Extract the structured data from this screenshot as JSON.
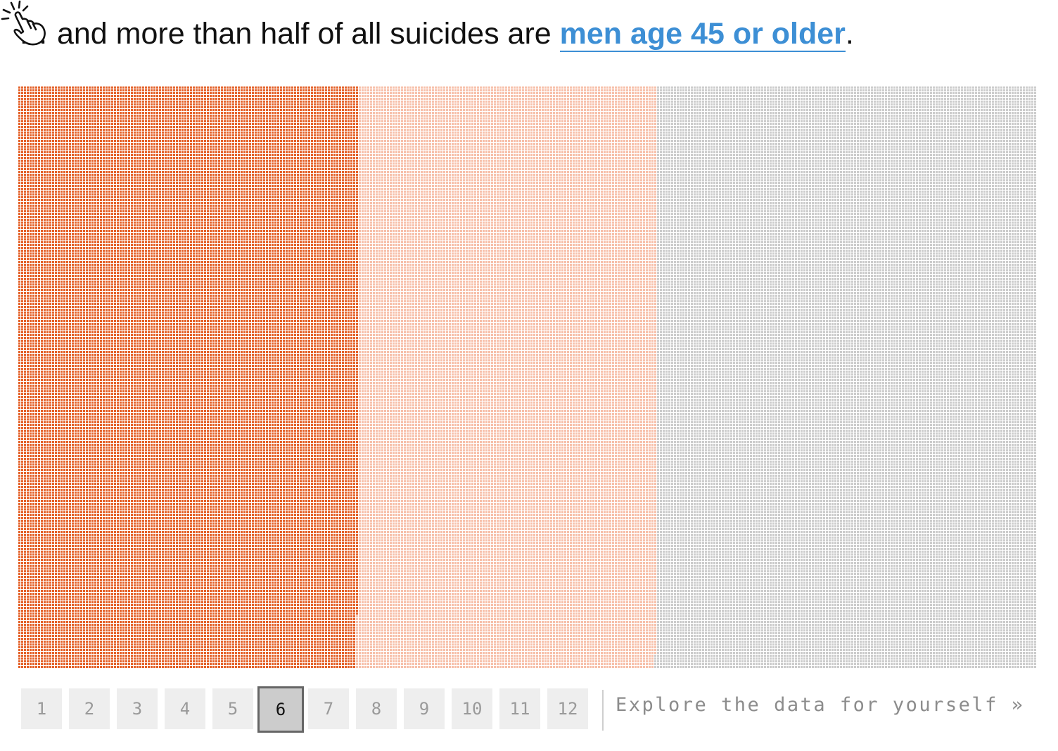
{
  "headline": {
    "prefix": "… and more than half of all suicides are ",
    "link_text": "men age 45 or older",
    "suffix": "."
  },
  "colors": {
    "highlight": "#e4622a",
    "secondary": "#f7c0aa",
    "neutral": "#cccccc",
    "link": "#3d8fd5"
  },
  "chart_data": {
    "type": "waffle",
    "description_unit": "one dot per suicide",
    "segments": [
      {
        "share": 0.334,
        "color": "#e4622a"
      },
      {
        "share": 0.293,
        "color": "#f7c0aa"
      },
      {
        "share": 0.373,
        "color": "#cccccc"
      }
    ]
  },
  "icons": {
    "pointer": "tap-hand-icon"
  },
  "pagination": {
    "pages": [
      "1",
      "2",
      "3",
      "4",
      "5",
      "6",
      "7",
      "8",
      "9",
      "10",
      "11",
      "12"
    ],
    "active_index": 5,
    "explore_label": "Explore the data for yourself »"
  }
}
